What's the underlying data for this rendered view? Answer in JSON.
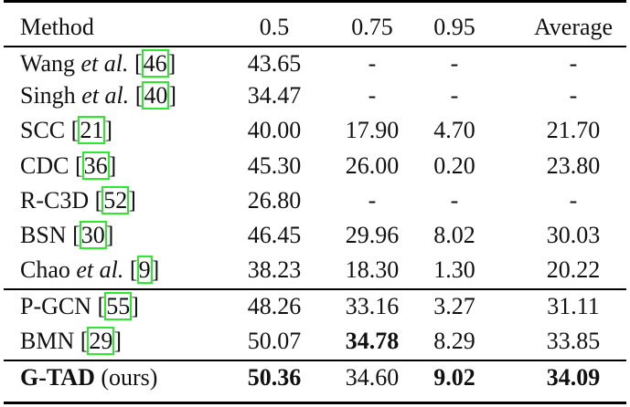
{
  "header": {
    "method": "Method",
    "cols": [
      "0.5",
      "0.75",
      "0.95",
      "Average"
    ]
  },
  "rows": [
    {
      "name": "Wang",
      "etal": "et al.",
      "ref": "46",
      "values": [
        "43.65",
        "-",
        "-",
        "-"
      ],
      "bold": []
    },
    {
      "name": "Singh",
      "etal": "et al.",
      "ref": "40",
      "values": [
        "34.47",
        "-",
        "-",
        "-"
      ],
      "bold": []
    },
    {
      "name": "SCC",
      "etal": "",
      "ref": "21",
      "values": [
        "40.00",
        "17.90",
        "4.70",
        "21.70"
      ],
      "bold": []
    },
    {
      "name": "CDC",
      "etal": "",
      "ref": "36",
      "values": [
        "45.30",
        "26.00",
        "0.20",
        "23.80"
      ],
      "bold": []
    },
    {
      "name": "R-C3D",
      "etal": "",
      "ref": "52",
      "values": [
        "26.80",
        "-",
        "-",
        "-"
      ],
      "bold": []
    },
    {
      "name": "BSN",
      "etal": "",
      "ref": "30",
      "values": [
        "46.45",
        "29.96",
        "8.02",
        "30.03"
      ],
      "bold": []
    },
    {
      "name": "Chao",
      "etal": "et al.",
      "ref": "9",
      "values": [
        "38.23",
        "18.30",
        "1.30",
        "20.22"
      ],
      "bold": []
    },
    {
      "name": "P-GCN",
      "etal": "",
      "ref": "55",
      "values": [
        "48.26",
        "33.16",
        "3.27",
        "31.11"
      ],
      "bold": []
    },
    {
      "name": "BMN",
      "etal": "",
      "ref": "29",
      "values": [
        "50.07",
        "34.78",
        "8.29",
        "33.85"
      ],
      "bold": [
        1
      ]
    }
  ],
  "ours": {
    "name": "G-TAD",
    "suffix": "(ours)",
    "values": [
      "50.36",
      "34.60",
      "9.02",
      "34.09"
    ],
    "bold": [
      0,
      2,
      3
    ]
  },
  "ref_box_color": "#2ee82e"
}
